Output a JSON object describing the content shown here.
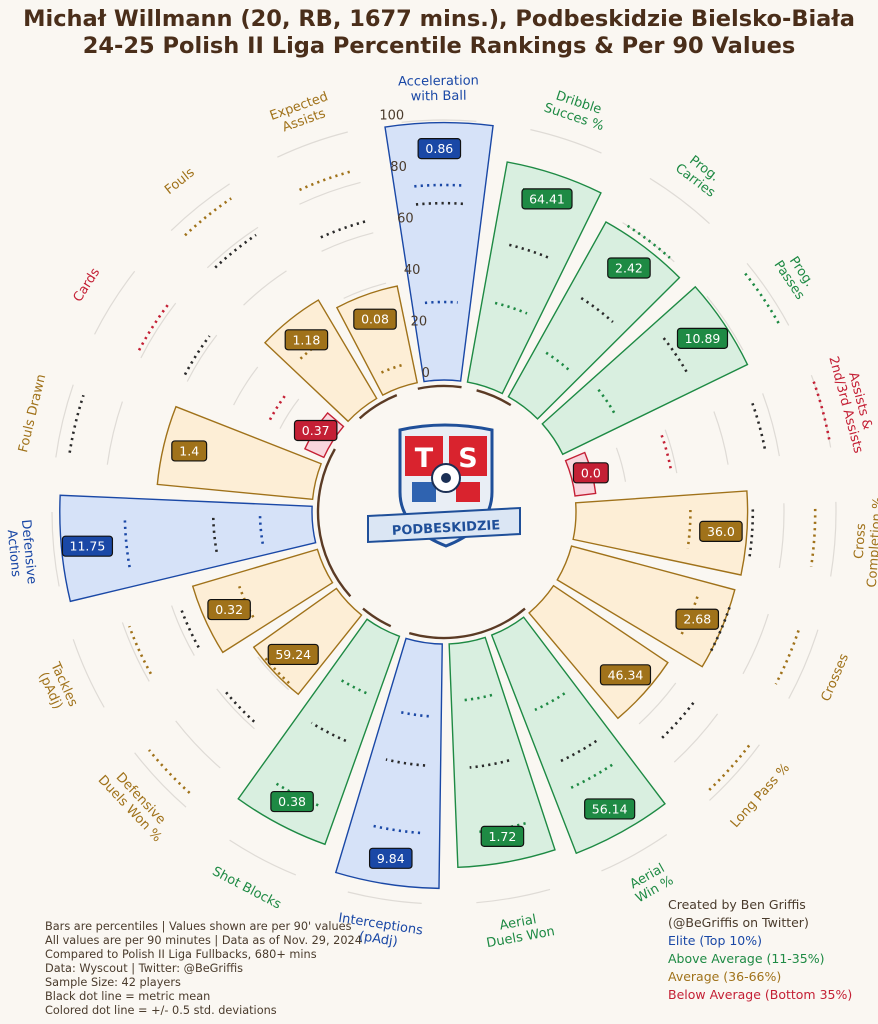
{
  "header": {
    "title_line1": "Michał Willmann (20, RB, 1677 mins.), Podbeskidzie Bielsko-Biała",
    "title_line2": "24-25 Polish II Liga Percentile Rankings & Per 90 Values"
  },
  "logo": {
    "letter_left": "T",
    "letter_right": "S",
    "banner_text": "PODBESKIDZIE"
  },
  "colors": {
    "elite": "#1a48a6",
    "above_average": "#1e8a44",
    "average": "#a0721a",
    "below_average": "#c42035",
    "background": "#faf7f2",
    "title": "#4a2e1a"
  },
  "chart_data": {
    "type": "pizza",
    "radial_axis_labels": [
      "0",
      "20",
      "40",
      "60",
      "80",
      "100"
    ],
    "scale": [
      0,
      100
    ],
    "metrics": [
      {
        "label": "Fouls Drawn",
        "percentile": 60,
        "value": "1.4",
        "tier": "average",
        "mean": 95,
        "sd_low": null,
        "sd_high": null
      },
      {
        "label": "Cards",
        "percentile": 8,
        "value": "0.37",
        "tier": "below",
        "mean": 62,
        "sd_low": 25,
        "sd_high": 82
      },
      {
        "label": "Fouls",
        "percentile": 44,
        "value": "1.18",
        "tier": "average",
        "mean": 78,
        "sd_low": 30,
        "sd_high": 95
      },
      {
        "label": "Expected Assists",
        "percentile": 38,
        "value": "0.08",
        "tier": "average",
        "mean": 65,
        "sd_low": 8,
        "sd_high": 85
      },
      {
        "label": "Acceleration with Ball",
        "percentile": 99,
        "value": "0.86",
        "tier": "elite",
        "mean": 68,
        "sd_low": 30,
        "sd_high": 75
      },
      {
        "label": "Dribble Succes %",
        "percentile": 86,
        "value": "64.41",
        "tier": "above",
        "mean": 55,
        "sd_low": 32,
        "sd_high": 77
      },
      {
        "label": "Prog. Carries",
        "percentile": 77,
        "value": "2.42",
        "tier": "above",
        "mean": 47,
        "sd_low": 22,
        "sd_high": 80
      },
      {
        "label": "Prog. Passes",
        "percentile": 79,
        "value": "10.89",
        "tier": "above",
        "mean": 57,
        "sd_low": 25,
        "sd_high": 97
      },
      {
        "label": "Assists & 2nd/3rd Assists",
        "percentile": 8,
        "value": "0.0",
        "tier": "below",
        "mean": 75,
        "sd_low": 38,
        "sd_high": 100
      },
      {
        "label": "Cross Completion %",
        "percentile": 66,
        "value": "36.0",
        "tier": "average",
        "mean": 68,
        "sd_low": 44,
        "sd_high": 92
      },
      {
        "label": "Crosses",
        "percentile": 65,
        "value": "2.68",
        "tier": "average",
        "mean": 65,
        "sd_low": 52,
        "sd_high": 93
      },
      {
        "label": "Long Pass %",
        "percentile": 53,
        "value": "46.34",
        "tier": "average",
        "mean": 70,
        "sd_low": null,
        "sd_high": 97
      },
      {
        "label": "Aerial Win %",
        "percentile": 90,
        "value": "56.14",
        "tier": "above",
        "mean": 55,
        "sd_low": 33,
        "sd_high": 66
      },
      {
        "label": "Aerial Duels Won",
        "percentile": 86,
        "value": "1.72",
        "tier": "above",
        "mean": 48,
        "sd_low": 22,
        "sd_high": 73
      },
      {
        "label": "Interceptions (pAdj)",
        "percentile": 94,
        "value": "9.84",
        "tier": "elite",
        "mean": 47,
        "sd_low": 28,
        "sd_high": 73
      },
      {
        "label": "Shot Blocks",
        "percentile": 85,
        "value": "0.38",
        "tier": "above",
        "mean": 45,
        "sd_low": 25,
        "sd_high": 72
      },
      {
        "label": "Defensive Duels Won %",
        "percentile": 39,
        "value": "59.24",
        "tier": "average",
        "mean": 58,
        "sd_low": 38,
        "sd_high": 95
      },
      {
        "label": "Tackles (pAdj)",
        "percentile": 50,
        "value": "0.32",
        "tier": "average",
        "mean": 57,
        "sd_low": 33,
        "sd_high": 78
      },
      {
        "label": "Defensive Actions",
        "percentile": 97,
        "value": "11.75",
        "tier": "elite",
        "mean": 38,
        "sd_low": 20,
        "sd_high": 72
      }
    ]
  },
  "footer": {
    "lines": [
      "Bars are percentiles | Values shown are per 90' values",
      "All values are per 90 minutes | Data as of Nov. 29, 2024",
      "Compared to Polish II Liga Fullbacks, 680+ mins",
      "Data: Wyscout | Twitter: @BeGriffis",
      "Sample Size: 42 players",
      "Black dot line = metric mean",
      "Colored dot line = +/- 0.5 std. deviations"
    ]
  },
  "credit": {
    "line1": "Created by Ben Griffis",
    "line2": "(@BeGriffis on Twitter)",
    "legend_elite": "Elite (Top 10%)",
    "legend_above": "Above Average (11-35%)",
    "legend_average": "Average (36-66%)",
    "legend_below": "Below Average (Bottom 35%)"
  }
}
